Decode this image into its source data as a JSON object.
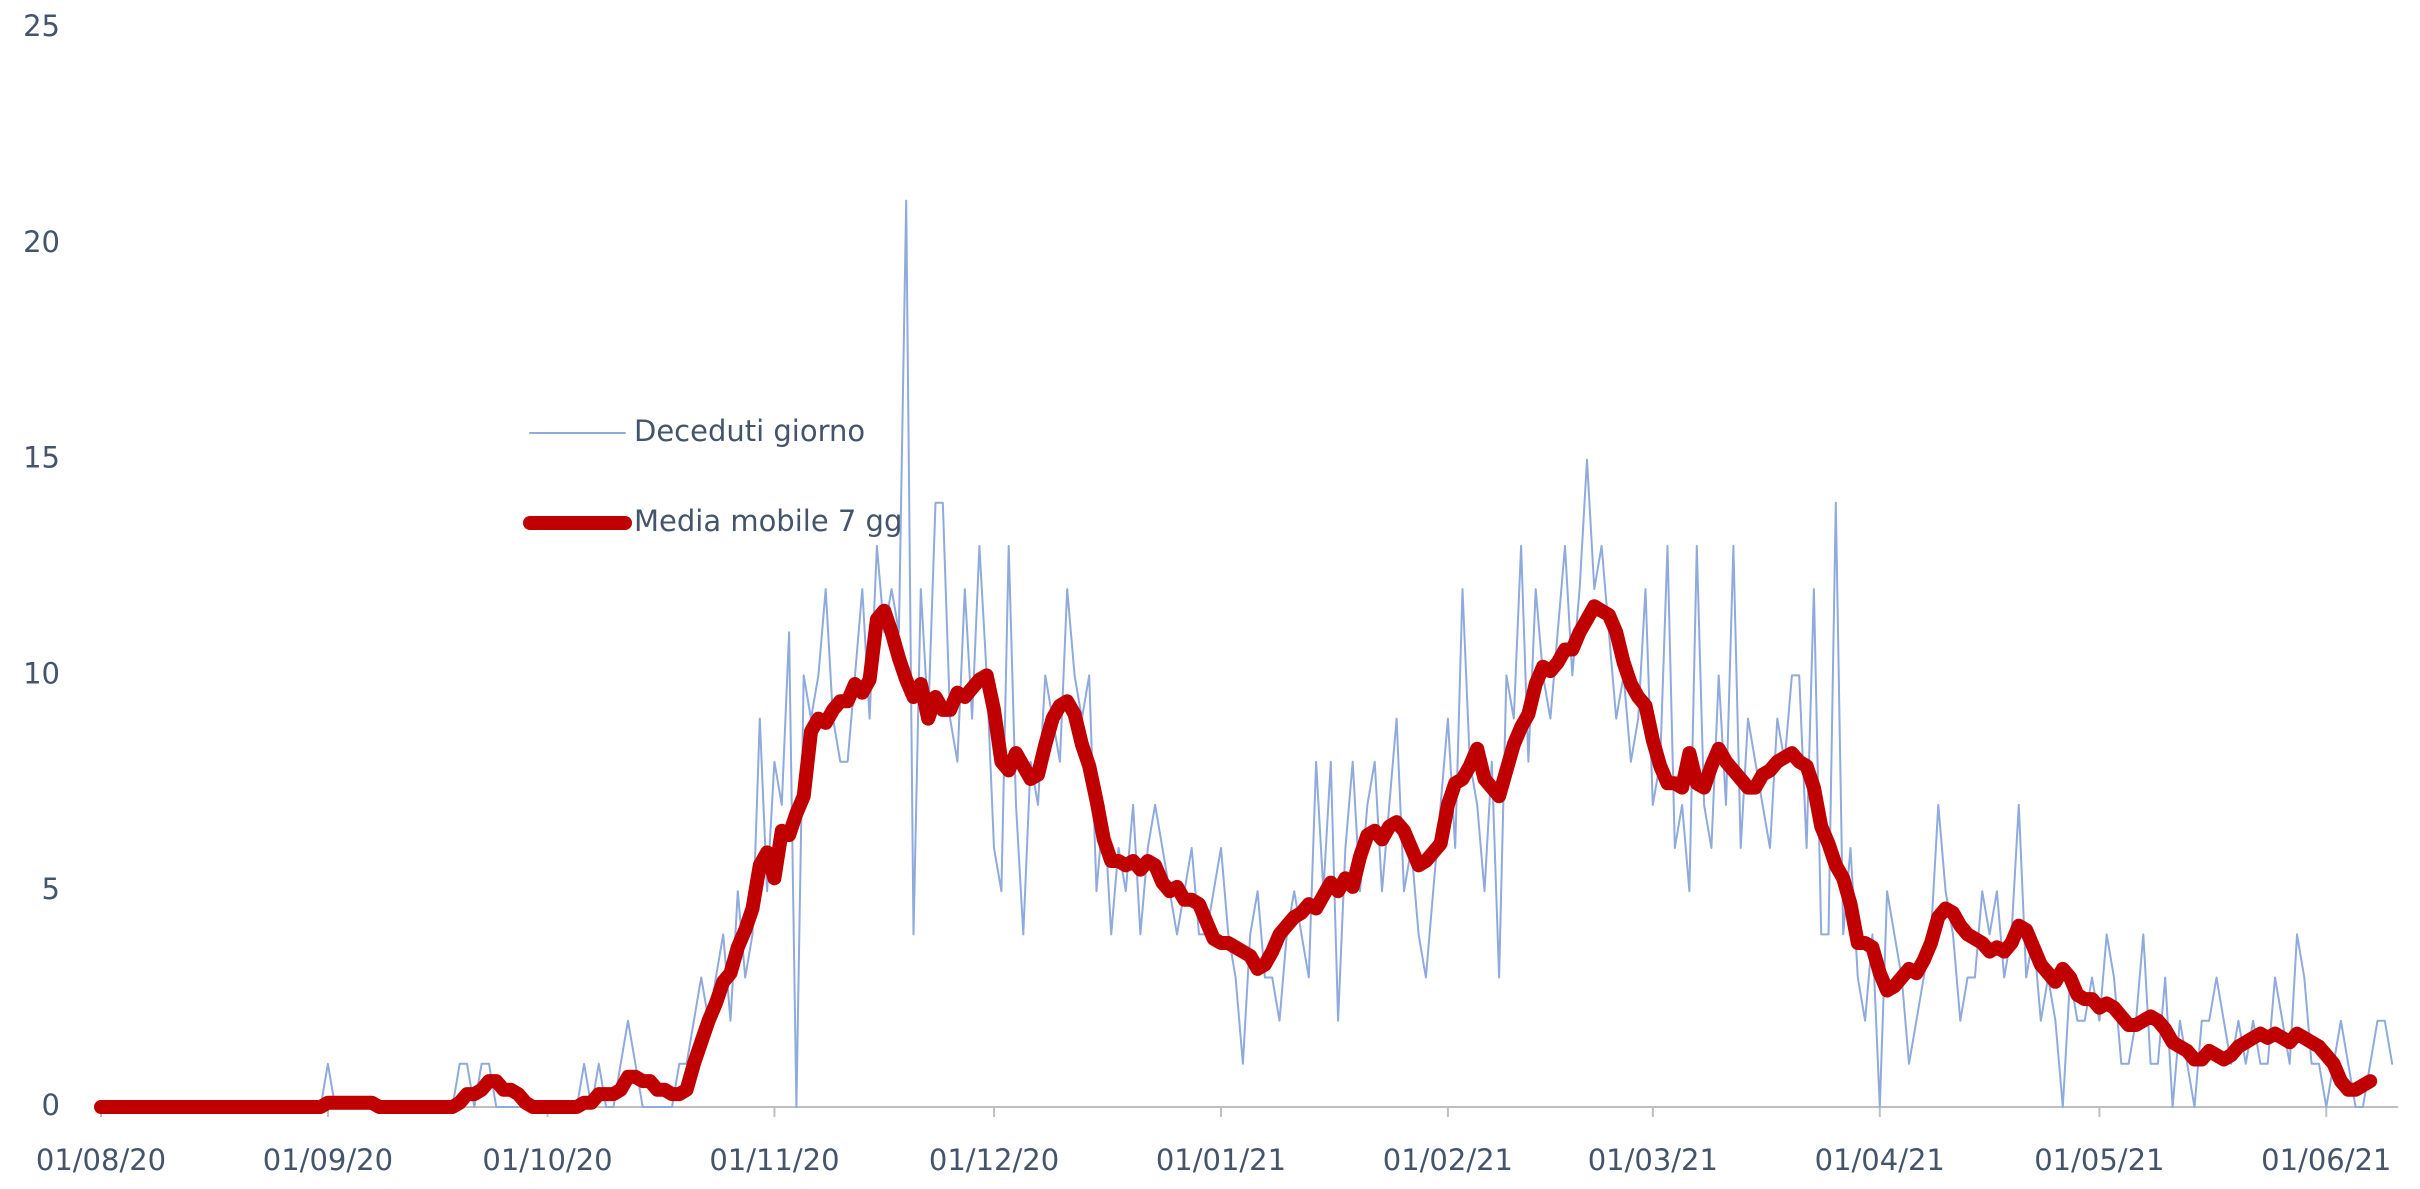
{
  "chart_data": {
    "type": "line",
    "x": [
      "01/08/20",
      "02/08/20",
      "03/08/20",
      "04/08/20",
      "05/08/20",
      "06/08/20",
      "07/08/20",
      "08/08/20",
      "09/08/20",
      "10/08/20",
      "11/08/20",
      "12/08/20",
      "13/08/20",
      "14/08/20",
      "15/08/20",
      "16/08/20",
      "17/08/20",
      "18/08/20",
      "19/08/20",
      "20/08/20",
      "21/08/20",
      "22/08/20",
      "23/08/20",
      "24/08/20",
      "25/08/20",
      "26/08/20",
      "27/08/20",
      "28/08/20",
      "29/08/20",
      "30/08/20",
      "31/08/20",
      "01/09/20",
      "02/09/20",
      "03/09/20",
      "04/09/20",
      "05/09/20",
      "06/09/20",
      "07/09/20",
      "08/09/20",
      "09/09/20",
      "10/09/20",
      "11/09/20",
      "12/09/20",
      "13/09/20",
      "14/09/20",
      "15/09/20",
      "16/09/20",
      "17/09/20",
      "18/09/20",
      "19/09/20",
      "20/09/20",
      "21/09/20",
      "22/09/20",
      "23/09/20",
      "24/09/20",
      "25/09/20",
      "26/09/20",
      "27/09/20",
      "28/09/20",
      "29/09/20",
      "30/09/20",
      "01/10/20",
      "02/10/20",
      "03/10/20",
      "04/10/20",
      "05/10/20",
      "06/10/20",
      "07/10/20",
      "08/10/20",
      "09/10/20",
      "10/10/20",
      "11/10/20",
      "12/10/20",
      "13/10/20",
      "14/10/20",
      "15/10/20",
      "16/10/20",
      "17/10/20",
      "18/10/20",
      "19/10/20",
      "20/10/20",
      "21/10/20",
      "22/10/20",
      "23/10/20",
      "24/10/20",
      "25/10/20",
      "26/10/20",
      "27/10/20",
      "28/10/20",
      "29/10/20",
      "30/10/20",
      "31/10/20",
      "01/11/20",
      "02/11/20",
      "03/11/20",
      "04/11/20",
      "05/11/20",
      "06/11/20",
      "07/11/20",
      "08/11/20",
      "09/11/20",
      "10/11/20",
      "11/11/20",
      "12/11/20",
      "13/11/20",
      "14/11/20",
      "15/11/20",
      "16/11/20",
      "17/11/20",
      "18/11/20",
      "19/11/20",
      "20/11/20",
      "21/11/20",
      "22/11/20",
      "23/11/20",
      "24/11/20",
      "25/11/20",
      "26/11/20",
      "27/11/20",
      "28/11/20",
      "29/11/20",
      "30/11/20",
      "01/12/20",
      "02/12/20",
      "03/12/20",
      "04/12/20",
      "05/12/20",
      "06/12/20",
      "07/12/20",
      "08/12/20",
      "09/12/20",
      "10/12/20",
      "11/12/20",
      "12/12/20",
      "13/12/20",
      "14/12/20",
      "15/12/20",
      "16/12/20",
      "17/12/20",
      "18/12/20",
      "19/12/20",
      "20/12/20",
      "21/12/20",
      "22/12/20",
      "23/12/20",
      "24/12/20",
      "25/12/20",
      "26/12/20",
      "27/12/20",
      "28/12/20",
      "29/12/20",
      "30/12/20",
      "31/12/20",
      "01/01/21",
      "02/01/21",
      "03/01/21",
      "04/01/21",
      "05/01/21",
      "06/01/21",
      "07/01/21",
      "08/01/21",
      "09/01/21",
      "10/01/21",
      "11/01/21",
      "12/01/21",
      "13/01/21",
      "14/01/21",
      "15/01/21",
      "16/01/21",
      "17/01/21",
      "18/01/21",
      "19/01/21",
      "20/01/21",
      "21/01/21",
      "22/01/21",
      "23/01/21",
      "24/01/21",
      "25/01/21",
      "26/01/21",
      "27/01/21",
      "28/01/21",
      "29/01/21",
      "30/01/21",
      "31/01/21",
      "01/02/21",
      "02/02/21",
      "03/02/21",
      "04/02/21",
      "05/02/21",
      "06/02/21",
      "07/02/21",
      "08/02/21",
      "09/02/21",
      "10/02/21",
      "11/02/21",
      "12/02/21",
      "13/02/21",
      "14/02/21",
      "15/02/21",
      "16/02/21",
      "17/02/21",
      "18/02/21",
      "19/02/21",
      "20/02/21",
      "21/02/21",
      "22/02/21",
      "23/02/21",
      "24/02/21",
      "25/02/21",
      "26/02/21",
      "27/02/21",
      "28/02/21",
      "01/03/21",
      "02/03/21",
      "03/03/21",
      "04/03/21",
      "05/03/21",
      "06/03/21",
      "07/03/21",
      "08/03/21",
      "09/03/21",
      "10/03/21",
      "11/03/21",
      "12/03/21",
      "13/03/21",
      "14/03/21",
      "15/03/21",
      "16/03/21",
      "17/03/21",
      "18/03/21",
      "19/03/21",
      "20/03/21",
      "21/03/21",
      "22/03/21",
      "23/03/21",
      "24/03/21",
      "25/03/21",
      "26/03/21",
      "27/03/21",
      "28/03/21",
      "29/03/21",
      "30/03/21",
      "31/03/21",
      "01/04/21",
      "02/04/21",
      "03/04/21",
      "04/04/21",
      "05/04/21",
      "06/04/21",
      "07/04/21",
      "08/04/21",
      "09/04/21",
      "10/04/21",
      "11/04/21",
      "12/04/21",
      "13/04/21",
      "14/04/21",
      "15/04/21",
      "16/04/21",
      "17/04/21",
      "18/04/21",
      "19/04/21",
      "20/04/21",
      "21/04/21",
      "22/04/21",
      "23/04/21",
      "24/04/21",
      "25/04/21",
      "26/04/21",
      "27/04/21",
      "28/04/21",
      "29/04/21",
      "30/04/21",
      "01/05/21",
      "02/05/21",
      "03/05/21",
      "04/05/21",
      "05/05/21",
      "06/05/21",
      "07/05/21",
      "08/05/21",
      "09/05/21",
      "10/05/21",
      "11/05/21",
      "12/05/21",
      "13/05/21",
      "14/05/21",
      "15/05/21",
      "16/05/21",
      "17/05/21",
      "18/05/21",
      "19/05/21",
      "20/05/21",
      "21/05/21",
      "22/05/21",
      "23/05/21",
      "24/05/21",
      "25/05/21",
      "26/05/21",
      "27/05/21",
      "28/05/21",
      "29/05/21",
      "30/05/21",
      "31/05/21",
      "01/06/21",
      "02/06/21",
      "03/06/21",
      "04/06/21",
      "05/06/21",
      "06/06/21",
      "07/06/21",
      "08/06/21",
      "09/06/21",
      "10/06/21"
    ],
    "series": [
      {
        "name": "Deceduti giorno",
        "color": "#8faadc",
        "width": 2,
        "values": [
          0,
          0,
          0,
          0,
          0,
          0,
          0,
          0,
          0,
          0,
          0,
          0,
          0,
          0,
          0,
          0,
          0,
          0,
          0,
          0,
          0,
          0,
          0,
          0,
          0,
          0,
          0,
          0,
          0,
          0,
          0,
          1,
          0,
          0,
          0,
          0,
          0,
          0,
          0,
          0,
          0,
          0,
          0,
          0,
          0,
          0,
          0,
          0,
          0,
          1,
          1,
          0,
          1,
          1,
          0,
          0,
          0,
          0,
          0,
          0,
          0,
          0,
          0,
          0,
          0,
          0,
          1,
          0,
          1,
          0,
          0,
          1,
          2,
          1,
          0,
          0,
          0,
          0,
          0,
          1,
          1,
          2,
          3,
          2,
          3,
          4,
          2,
          5,
          3,
          4,
          9,
          5,
          8,
          7,
          11,
          0,
          10,
          9,
          10,
          12,
          9,
          8,
          8,
          10,
          12,
          9,
          13,
          11,
          12,
          11,
          21,
          4,
          12,
          9,
          14,
          14,
          9,
          8,
          12,
          9,
          13,
          10,
          6,
          5,
          13,
          7,
          4,
          8,
          7,
          10,
          9,
          8,
          12,
          10,
          9,
          10,
          5,
          7,
          4,
          6,
          5,
          7,
          4,
          6,
          7,
          6,
          5,
          4,
          5,
          6,
          4,
          4,
          5,
          6,
          4,
          3,
          1,
          4,
          5,
          3,
          3,
          2,
          4,
          5,
          4,
          3,
          8,
          5,
          8,
          2,
          6,
          8,
          5,
          7,
          8,
          5,
          7,
          9,
          5,
          6,
          4,
          3,
          5,
          7,
          9,
          6,
          12,
          8,
          7,
          5,
          8,
          3,
          10,
          9,
          13,
          8,
          12,
          10,
          9,
          11,
          13,
          10,
          12,
          15,
          12,
          13,
          11,
          9,
          10,
          8,
          9,
          12,
          7,
          8,
          13,
          6,
          7,
          5,
          13,
          7,
          6,
          10,
          7,
          13,
          6,
          9,
          8,
          7,
          6,
          9,
          8,
          10,
          10,
          6,
          12,
          4,
          4,
          14,
          4,
          6,
          3,
          2,
          4,
          0,
          5,
          4,
          3,
          1,
          2,
          3,
          4,
          7,
          5,
          4,
          2,
          3,
          3,
          5,
          4,
          5,
          3,
          4,
          7,
          3,
          4,
          2,
          3,
          2,
          0,
          3,
          2,
          2,
          3,
          2,
          4,
          3,
          1,
          1,
          2,
          4,
          1,
          1,
          3,
          0,
          2,
          1,
          0,
          2,
          2,
          3,
          2,
          1,
          2,
          1,
          2,
          1,
          1,
          3,
          2,
          1,
          4,
          3,
          1,
          1,
          0,
          1,
          2,
          1,
          0,
          0,
          1,
          2,
          2,
          1
        ]
      },
      {
        "name": "Media mobile 7 gg",
        "color": "#c00000",
        "width": 14,
        "values": [
          0,
          0,
          0,
          0,
          0,
          0,
          0,
          0,
          0,
          0,
          0,
          0,
          0,
          0,
          0,
          0,
          0,
          0,
          0,
          0,
          0,
          0,
          0,
          0,
          0,
          0,
          0,
          0,
          0,
          0,
          0,
          0.1,
          0.1,
          0.1,
          0.1,
          0.1,
          0.1,
          0.1,
          0,
          0,
          0,
          0,
          0,
          0,
          0,
          0,
          0,
          0,
          0,
          0.1,
          0.3,
          0.3,
          0.4,
          0.6,
          0.6,
          0.4,
          0.4,
          0.3,
          0.1,
          0,
          0,
          0,
          0,
          0,
          0,
          0,
          0.1,
          0.1,
          0.3,
          0.3,
          0.3,
          0.4,
          0.7,
          0.7,
          0.6,
          0.6,
          0.4,
          0.4,
          0.3,
          0.3,
          0.4,
          1,
          1.5,
          2,
          2.4,
          2.9,
          3.1,
          3.7,
          4.1,
          4.6,
          5.6,
          5.9,
          5.3,
          6.4,
          6.3,
          6.8,
          7.2,
          8.7,
          9,
          8.9,
          9.2,
          9.4,
          9.4,
          9.8,
          9.6,
          9.9,
          11.3,
          11.5,
          11,
          10.4,
          9.9,
          9.5,
          9.8,
          9,
          9.5,
          9.2,
          9.2,
          9.6,
          9.5,
          9.7,
          9.9,
          10,
          9.2,
          8,
          7.8,
          8.2,
          7.9,
          7.6,
          7.7,
          8.4,
          9,
          9.3,
          9.4,
          9.1,
          8.4,
          7.9,
          7.1,
          6.2,
          5.7,
          5.7,
          5.6,
          5.7,
          5.5,
          5.7,
          5.6,
          5.2,
          5,
          5.1,
          4.8,
          4.8,
          4.7,
          4.3,
          3.9,
          3.8,
          3.8,
          3.7,
          3.6,
          3.5,
          3.2,
          3.3,
          3.6,
          4,
          4.2,
          4.4,
          4.5,
          4.7,
          4.6,
          4.9,
          5.2,
          5,
          5.3,
          5.1,
          5.8,
          6.3,
          6.4,
          6.2,
          6.5,
          6.6,
          6.4,
          6,
          5.6,
          5.7,
          5.9,
          6.1,
          7,
          7.5,
          7.6,
          7.9,
          8.3,
          7.6,
          7.4,
          7.2,
          7.8,
          8.4,
          8.8,
          9.1,
          9.8,
          10.2,
          10.1,
          10.3,
          10.6,
          10.6,
          11,
          11.3,
          11.6,
          11.5,
          11.4,
          11,
          10.3,
          9.8,
          9.5,
          9.3,
          8.5,
          7.9,
          7.5,
          7.5,
          7.4,
          8.2,
          7.5,
          7.4,
          7.9,
          8.3,
          8,
          7.8,
          7.6,
          7.4,
          7.4,
          7.7,
          7.8,
          8,
          8.1,
          8.2,
          8,
          7.9,
          7.4,
          6.5,
          6.1,
          5.6,
          5.3,
          4.7,
          3.8,
          3.8,
          3.7,
          3.1,
          2.7,
          2.8,
          3,
          3.2,
          3.1,
          3.4,
          3.8,
          4.4,
          4.6,
          4.5,
          4.2,
          4,
          3.9,
          3.8,
          3.6,
          3.7,
          3.6,
          3.8,
          4.2,
          4.1,
          3.7,
          3.3,
          3.1,
          2.9,
          3.2,
          3,
          2.6,
          2.5,
          2.5,
          2.3,
          2.4,
          2.3,
          2.1,
          1.9,
          1.9,
          2,
          2.1,
          2,
          1.8,
          1.5,
          1.4,
          1.3,
          1.1,
          1.1,
          1.3,
          1.2,
          1.1,
          1.2,
          1.4,
          1.5,
          1.6,
          1.7,
          1.6,
          1.7,
          1.6,
          1.5,
          1.7,
          1.6,
          1.5,
          1.4,
          1.2,
          1,
          0.6,
          0.4,
          0.4,
          0.5,
          0.6,
          null,
          null,
          null
        ]
      }
    ],
    "xticks": [
      "01/08/20",
      "01/09/20",
      "01/10/20",
      "01/11/20",
      "01/12/20",
      "01/01/21",
      "01/02/21",
      "01/03/21",
      "01/04/21",
      "01/05/21",
      "01/06/21"
    ],
    "ylim": [
      0,
      25
    ],
    "yticks": [
      0,
      5,
      10,
      15,
      20,
      25
    ],
    "grid": false,
    "legend": "center"
  }
}
